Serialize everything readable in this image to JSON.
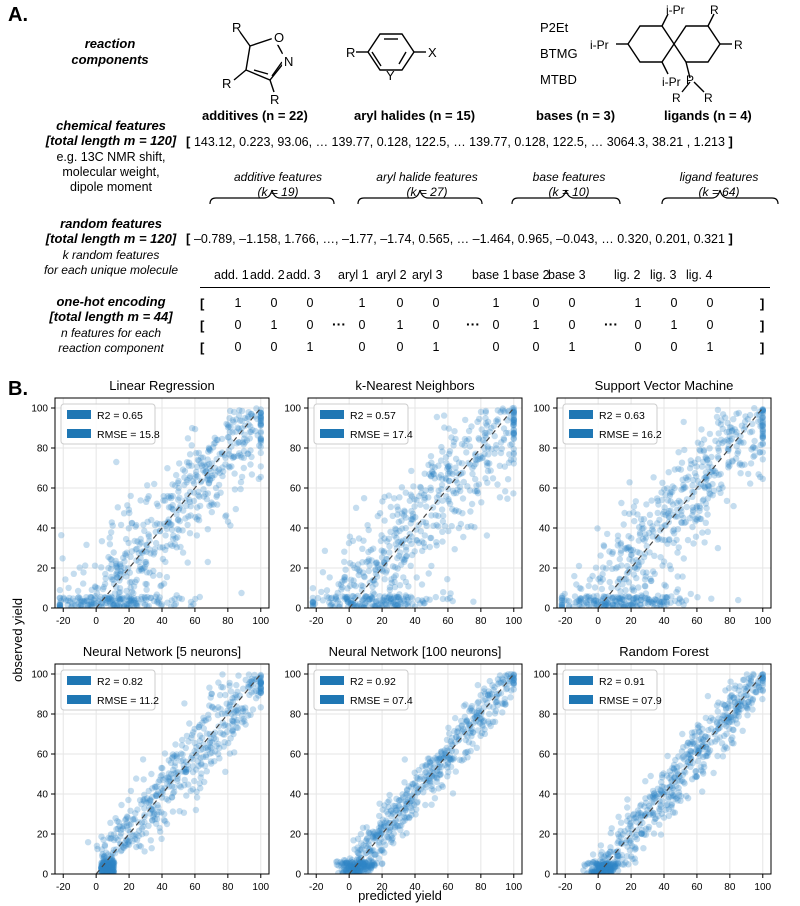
{
  "panel_a": {
    "letter": "A.",
    "reaction_components_label": "reaction\ncomponents",
    "reagents": {
      "bases": [
        "P2Et",
        "BTMG",
        "MTBD"
      ],
      "aryl_halide_atoms": {
        "r": "R",
        "x": "X",
        "y": "Y"
      },
      "additive_atoms": {
        "r1": "R",
        "r2": "R",
        "r3": "R",
        "o": "O",
        "n": "N"
      },
      "ligand_atoms": {
        "ipr_top": "i-Pr",
        "ipr_left": "i-Pr",
        "ipr_bottom": "i-Pr",
        "r_top": "R",
        "r_right": "R",
        "p": "P",
        "r_p1": "R",
        "r_p2": "R"
      }
    },
    "categories": [
      "additives (n = 22)",
      "aryl halides (n = 15)",
      "bases (n = 3)",
      "ligands (n = 4)"
    ],
    "chemical": {
      "header": "chemical features\n[total length m = 120]",
      "desc": "e.g. 13C NMR shift,\nmolecular weight,\ndipole moment",
      "values": "143.12, 0.223, 93.06, … 139.77, 0.128, 122.5, … 139.77, 0.128, 122.5, … 3064.3, 38.21 , 1.213",
      "groups": [
        "additive features\n(k = 19)",
        "aryl halide features\n(k = 27)",
        "base features\n(k = 10)",
        "ligand features\n(k = 64)"
      ]
    },
    "random": {
      "header": "random features\n[total length m = 120]",
      "desc": "k random features\nfor each unique molecule",
      "values": "–0.789, –1.158, 1.766, …, –1.77, –1.74, 0.565, … –1.464, 0.965, –0.043, … 0.320, 0.201, 0.321"
    },
    "onehot": {
      "header": "one-hot encoding\n[total length m = 44]",
      "desc": "n features for each\nreaction component",
      "columns": [
        "add. 1",
        "add. 2",
        "add. 3",
        "aryl 1",
        "aryl 2",
        "aryl 3",
        "base 1",
        "base 2",
        "base 3",
        "lig. 2",
        "lig. 3",
        "lig. 4"
      ],
      "rows": [
        [
          1,
          0,
          0,
          1,
          0,
          0,
          1,
          0,
          0,
          1,
          0,
          0
        ],
        [
          0,
          1,
          0,
          0,
          1,
          0,
          0,
          1,
          0,
          0,
          1,
          0
        ],
        [
          0,
          0,
          1,
          0,
          0,
          1,
          0,
          0,
          1,
          0,
          0,
          1
        ]
      ],
      "ellipsis": "···"
    }
  },
  "panel_b": {
    "letter": "B.",
    "xlabel": "predicted yield",
    "ylabel": "observed yield",
    "point_color": "#2f86c7",
    "legend_color": "#1f77b4"
  },
  "chart_data": [
    {
      "type": "scatter",
      "title": "Linear Regression",
      "r2": "R2 = 0.65",
      "rmse": "RMSE = 15.8",
      "xlim": [
        -25,
        105
      ],
      "ylim": [
        0,
        105
      ],
      "xticks": [
        -20,
        0,
        20,
        40,
        60,
        80,
        100
      ],
      "yticks": [
        0,
        20,
        40,
        60,
        80,
        100
      ],
      "noise": 15.8,
      "spread": "wide"
    },
    {
      "type": "scatter",
      "title": "k-Nearest Neighbors",
      "r2": "R2 = 0.57",
      "rmse": "RMSE = 17.4",
      "xlim": [
        -25,
        105
      ],
      "ylim": [
        0,
        105
      ],
      "xticks": [
        -20,
        0,
        20,
        40,
        60,
        80,
        100
      ],
      "yticks": [
        0,
        20,
        40,
        60,
        80,
        100
      ],
      "noise": 17.4,
      "spread": "wide"
    },
    {
      "type": "scatter",
      "title": "Support Vector Machine",
      "r2": "R2 = 0.63",
      "rmse": "RMSE = 16.2",
      "xlim": [
        -25,
        105
      ],
      "ylim": [
        0,
        105
      ],
      "xticks": [
        -20,
        0,
        20,
        40,
        60,
        80,
        100
      ],
      "yticks": [
        0,
        20,
        40,
        60,
        80,
        100
      ],
      "noise": 16.2,
      "spread": "wide"
    },
    {
      "type": "scatter",
      "title": "Neural Network [5 neurons]",
      "r2": "R2 = 0.82",
      "rmse": "RMSE = 11.2",
      "xlim": [
        -25,
        105
      ],
      "ylim": [
        0,
        105
      ],
      "xticks": [
        -20,
        0,
        20,
        40,
        60,
        80,
        100
      ],
      "yticks": [
        0,
        20,
        40,
        60,
        80,
        100
      ],
      "noise": 11.2,
      "spread": "mid"
    },
    {
      "type": "scatter",
      "title": "Neural Network [100 neurons]",
      "r2": "R2 = 0.92",
      "rmse": "RMSE = 07.4",
      "xlim": [
        -25,
        105
      ],
      "ylim": [
        0,
        105
      ],
      "xticks": [
        -20,
        0,
        20,
        40,
        60,
        80,
        100
      ],
      "yticks": [
        0,
        20,
        40,
        60,
        80,
        100
      ],
      "noise": 7.4,
      "spread": "tight"
    },
    {
      "type": "scatter",
      "title": "Random Forest",
      "r2": "R2 = 0.91",
      "rmse": "RMSE = 07.9",
      "xlim": [
        -25,
        105
      ],
      "ylim": [
        0,
        105
      ],
      "xticks": [
        -20,
        0,
        20,
        40,
        60,
        80,
        100
      ],
      "yticks": [
        0,
        20,
        40,
        60,
        80,
        100
      ],
      "noise": 7.9,
      "spread": "tight"
    }
  ]
}
